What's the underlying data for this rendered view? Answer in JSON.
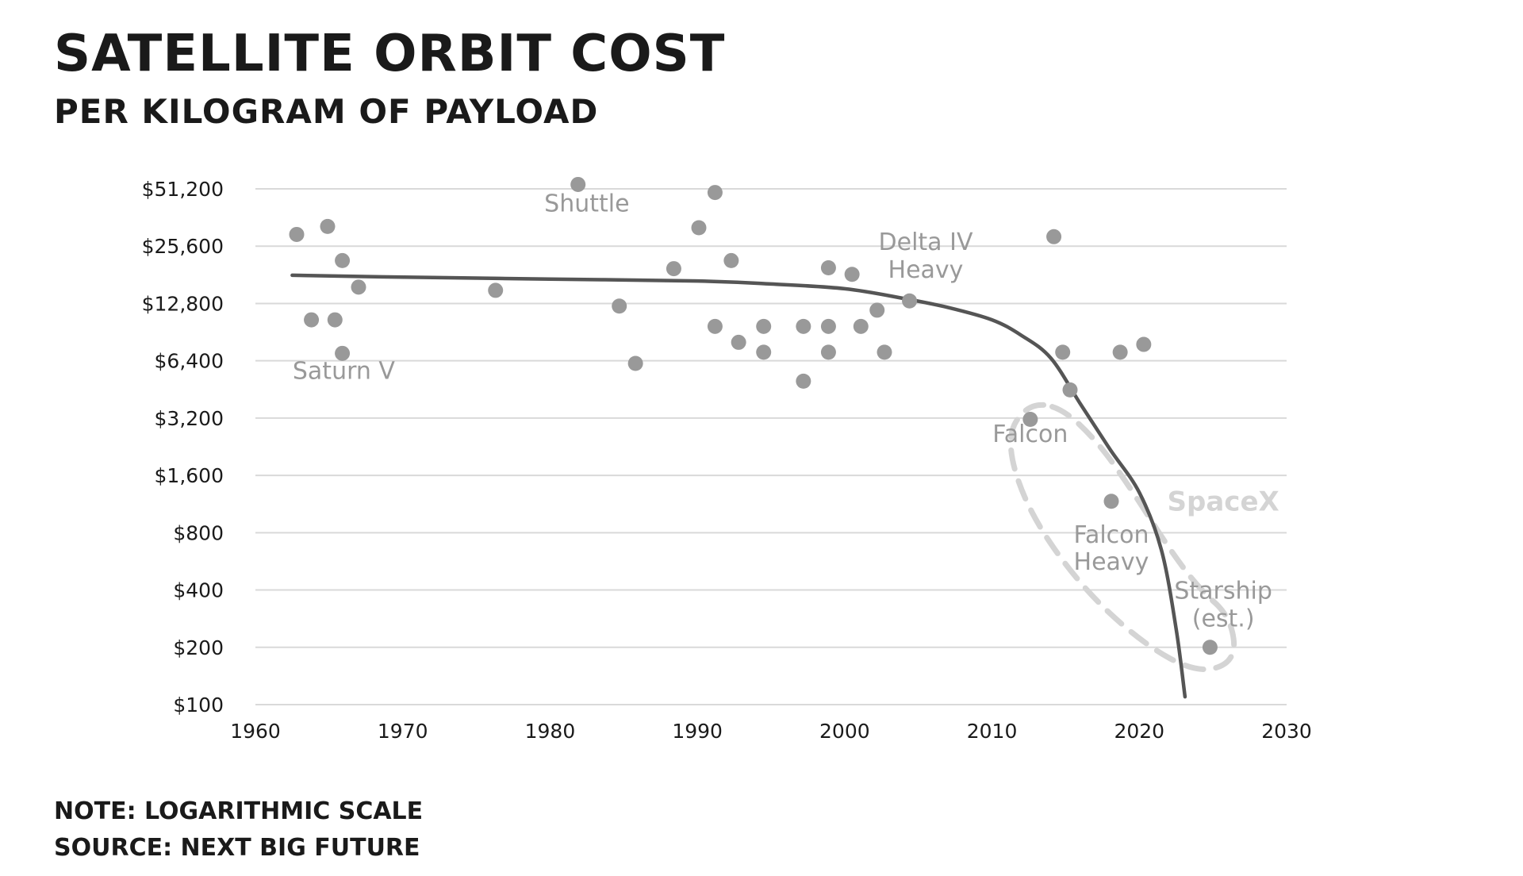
{
  "title": "SATELLITE ORBIT COST",
  "subtitle": "PER KILOGRAM OF PAYLOAD",
  "note": "NOTE: LOGARITHMIC SCALE",
  "source": "SOURCE: NEXT BIG FUTURE",
  "colors": {
    "point": "#999999",
    "trend": "#555555",
    "grid": "#d9d9d9",
    "annotation": "#999999",
    "spacex_group": "#d4d4d4",
    "axis_text": "#1a1a1a"
  },
  "chart_data": {
    "type": "scatter",
    "title": "SATELLITE ORBIT COST",
    "subtitle": "PER KILOGRAM OF PAYLOAD",
    "xlabel": "",
    "ylabel": "",
    "xlim": [
      1960,
      2030
    ],
    "ylim": [
      100,
      51200
    ],
    "y_scale": "log2",
    "grid": "horizontal",
    "x_ticks": [
      1960,
      1970,
      1980,
      1990,
      2000,
      2010,
      2020,
      2030
    ],
    "x_tick_labels": [
      "1960",
      "1970",
      "1980",
      "1990",
      "2000",
      "2010",
      "2020",
      "2030"
    ],
    "y_ticks": [
      100,
      200,
      400,
      800,
      1600,
      3200,
      6400,
      12800,
      25600,
      51200
    ],
    "y_tick_labels": [
      "$100",
      "$200",
      "$400",
      "$800",
      "$1,600",
      "$3,200",
      "$6,400",
      "$12,800",
      "$25,600",
      "$51,200"
    ],
    "points": [
      {
        "x": 1962.8,
        "y": 29500
      },
      {
        "x": 1963.8,
        "y": 10500
      },
      {
        "x": 1964.9,
        "y": 32500
      },
      {
        "x": 1965.4,
        "y": 10500
      },
      {
        "x": 1965.9,
        "y": 21500
      },
      {
        "x": 1965.9,
        "y": 7000
      },
      {
        "x": 1967.0,
        "y": 15600
      },
      {
        "x": 1976.3,
        "y": 15000
      },
      {
        "x": 1981.9,
        "y": 54000
      },
      {
        "x": 1984.7,
        "y": 12400
      },
      {
        "x": 1985.8,
        "y": 6200
      },
      {
        "x": 1988.4,
        "y": 19500
      },
      {
        "x": 1990.1,
        "y": 32000
      },
      {
        "x": 1991.2,
        "y": 49000
      },
      {
        "x": 1991.2,
        "y": 9700
      },
      {
        "x": 1992.3,
        "y": 21500
      },
      {
        "x": 1992.8,
        "y": 8000
      },
      {
        "x": 1994.5,
        "y": 9700
      },
      {
        "x": 1994.5,
        "y": 7100
      },
      {
        "x": 1997.2,
        "y": 9700
      },
      {
        "x": 1997.2,
        "y": 5000
      },
      {
        "x": 1998.9,
        "y": 19700
      },
      {
        "x": 1998.9,
        "y": 9700
      },
      {
        "x": 1998.9,
        "y": 7100
      },
      {
        "x": 2000.5,
        "y": 18200
      },
      {
        "x": 2001.1,
        "y": 9700
      },
      {
        "x": 2002.2,
        "y": 11800
      },
      {
        "x": 2002.7,
        "y": 7100
      },
      {
        "x": 2004.4,
        "y": 13200
      },
      {
        "x": 2012.6,
        "y": 3150
      },
      {
        "x": 2014.2,
        "y": 28700
      },
      {
        "x": 2014.8,
        "y": 7100
      },
      {
        "x": 2015.3,
        "y": 4500
      },
      {
        "x": 2018.1,
        "y": 1170
      },
      {
        "x": 2018.7,
        "y": 7100
      },
      {
        "x": 2020.3,
        "y": 7800
      },
      {
        "x": 2024.8,
        "y": 200
      }
    ],
    "trend_line": [
      {
        "x": 1962.5,
        "y": 18000
      },
      {
        "x": 1970,
        "y": 17600
      },
      {
        "x": 1980,
        "y": 17200
      },
      {
        "x": 1990,
        "y": 16800
      },
      {
        "x": 1995,
        "y": 16200
      },
      {
        "x": 2000,
        "y": 15300
      },
      {
        "x": 2004,
        "y": 13600
      },
      {
        "x": 2007,
        "y": 12200
      },
      {
        "x": 2010,
        "y": 10500
      },
      {
        "x": 2012,
        "y": 8700
      },
      {
        "x": 2014,
        "y": 6600
      },
      {
        "x": 2016,
        "y": 3800
      },
      {
        "x": 2018,
        "y": 2200
      },
      {
        "x": 2020,
        "y": 1300
      },
      {
        "x": 2021.5,
        "y": 650
      },
      {
        "x": 2022.5,
        "y": 250
      },
      {
        "x": 2023.1,
        "y": 110
      }
    ],
    "annotations": [
      {
        "text": "Saturn V",
        "x": 1966.0,
        "y": 5150,
        "anchor": "middle"
      },
      {
        "text": "Shuttle",
        "x": 1982.5,
        "y": 39000,
        "anchor": "middle"
      },
      {
        "text": "Delta IV",
        "x": 2005.5,
        "y": 24500,
        "anchor": "middle"
      },
      {
        "text": "Heavy",
        "x": 2005.5,
        "y": 17500,
        "anchor": "middle"
      },
      {
        "text": "Falcon",
        "x": 2012.6,
        "y": 2400,
        "anchor": "middle"
      },
      {
        "text": "Falcon",
        "x": 2018.1,
        "y": 710,
        "anchor": "middle"
      },
      {
        "text": "Heavy",
        "x": 2018.1,
        "y": 510,
        "anchor": "middle"
      },
      {
        "text": "Starship",
        "x": 2025.7,
        "y": 360,
        "anchor": "middle"
      },
      {
        "text": "(est.)",
        "x": 2025.7,
        "y": 257,
        "anchor": "middle"
      }
    ],
    "group_label": {
      "text": "SpaceX",
      "x": 2025.7,
      "y": 1170,
      "anchor": "middle"
    }
  }
}
